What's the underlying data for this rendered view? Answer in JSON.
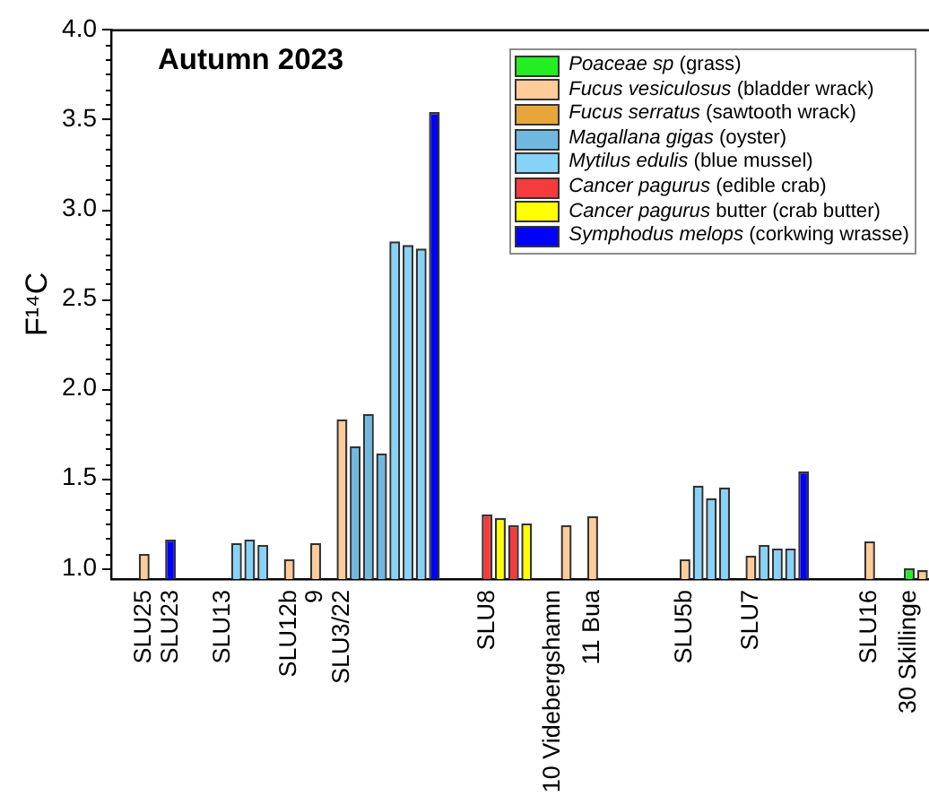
{
  "chart_data": {
    "type": "bar",
    "title": "Autumn 2023",
    "ylabel": "F¹⁴C",
    "categories": [
      null,
      null,
      "SLU25",
      null,
      "SLU23",
      null,
      null,
      null,
      "SLU13",
      null,
      null,
      null,
      null,
      "SLU12b",
      null,
      "9",
      null,
      "SLU3/22",
      null,
      null,
      null,
      null,
      null,
      null,
      null,
      null,
      null,
      null,
      "SLU8",
      null,
      null,
      null,
      null,
      "10 Videbergshamn",
      null,
      null,
      "11 Bua",
      null,
      null,
      null,
      null,
      null,
      null,
      "SLU5b",
      null,
      null,
      null,
      null,
      "SLU7",
      null,
      null,
      null,
      null,
      null,
      null,
      null,
      null,
      "SLU16",
      null,
      null,
      "30 Skillinge",
      null
    ],
    "series": [
      {
        "name": "Poaceae sp (grass)",
        "color": "#22ee22",
        "values": [
          null,
          null,
          null,
          null,
          null,
          null,
          null,
          null,
          null,
          null,
          null,
          null,
          null,
          null,
          null,
          null,
          null,
          null,
          null,
          null,
          null,
          null,
          null,
          null,
          null,
          null,
          null,
          null,
          null,
          null,
          null,
          null,
          null,
          null,
          null,
          null,
          null,
          null,
          null,
          null,
          null,
          null,
          null,
          null,
          null,
          null,
          null,
          null,
          null,
          null,
          null,
          null,
          null,
          null,
          null,
          null,
          null,
          null,
          null,
          null,
          1.0,
          null
        ]
      },
      {
        "name": "Fucus vesiculosus (bladder wrack)",
        "color": "#ffcc99",
        "values": [
          null,
          null,
          1.08,
          null,
          null,
          null,
          null,
          null,
          null,
          null,
          null,
          null,
          null,
          1.05,
          null,
          1.14,
          null,
          1.83,
          null,
          null,
          null,
          null,
          null,
          null,
          null,
          null,
          null,
          null,
          null,
          null,
          null,
          null,
          null,
          null,
          1.24,
          null,
          1.29,
          null,
          null,
          null,
          null,
          null,
          null,
          1.05,
          null,
          null,
          null,
          null,
          1.07,
          null,
          null,
          null,
          null,
          null,
          null,
          null,
          null,
          1.15,
          null,
          null,
          null,
          0.99
        ]
      },
      {
        "name": "Fucus serratus (sawtooth wrack)",
        "color": "#e8a53c",
        "values": [
          null,
          null,
          null,
          null,
          null,
          null,
          null,
          null,
          null,
          null,
          null,
          null,
          null,
          null,
          null,
          null,
          null,
          null,
          null,
          null,
          null,
          null,
          null,
          null,
          null,
          null,
          null,
          null,
          null,
          null,
          null,
          null,
          null,
          null,
          null,
          null,
          null,
          null,
          null,
          null,
          null,
          null,
          null,
          null,
          null,
          null,
          null,
          null,
          null,
          null,
          null,
          null,
          null,
          null,
          null,
          null,
          null,
          null,
          null,
          null,
          null,
          null
        ]
      },
      {
        "name": "Magallana gigas (oyster)",
        "color": "#6fb9e0",
        "values": [
          null,
          null,
          null,
          null,
          null,
          null,
          null,
          null,
          null,
          null,
          null,
          null,
          null,
          null,
          null,
          null,
          null,
          null,
          1.68,
          1.86,
          1.64,
          null,
          null,
          null,
          null,
          null,
          null,
          null,
          null,
          null,
          null,
          null,
          null,
          null,
          null,
          null,
          null,
          null,
          null,
          null,
          null,
          null,
          null,
          null,
          null,
          null,
          null,
          null,
          null,
          null,
          null,
          null,
          null,
          null,
          null,
          null,
          null,
          null,
          null,
          null,
          null,
          null
        ]
      },
      {
        "name": "Mytilus edulis (blue mussel)",
        "color": "#87d3f8",
        "values": [
          null,
          null,
          null,
          null,
          null,
          null,
          null,
          null,
          null,
          1.14,
          1.16,
          1.13,
          null,
          null,
          null,
          null,
          null,
          null,
          null,
          null,
          null,
          2.82,
          2.8,
          2.78,
          null,
          null,
          null,
          null,
          null,
          null,
          null,
          null,
          null,
          null,
          null,
          null,
          null,
          null,
          null,
          null,
          null,
          null,
          null,
          null,
          1.46,
          1.39,
          1.45,
          null,
          null,
          1.13,
          1.11,
          1.11,
          null,
          null,
          null,
          null,
          null,
          null,
          null,
          null,
          null,
          null
        ]
      },
      {
        "name": "Cancer pagurus (edible crab)",
        "color": "#f53b3b",
        "values": [
          null,
          null,
          null,
          null,
          null,
          null,
          null,
          null,
          null,
          null,
          null,
          null,
          null,
          null,
          null,
          null,
          null,
          null,
          null,
          null,
          null,
          null,
          null,
          null,
          null,
          null,
          null,
          null,
          1.3,
          null,
          1.24,
          null,
          null,
          null,
          null,
          null,
          null,
          null,
          null,
          null,
          null,
          null,
          null,
          null,
          null,
          null,
          null,
          null,
          null,
          null,
          null,
          null,
          null,
          null,
          null,
          null,
          null,
          null,
          null,
          null,
          null,
          null
        ]
      },
      {
        "name": "Cancer pagurus butter (crab butter)",
        "color": "#ffff00",
        "values": [
          null,
          null,
          null,
          null,
          null,
          null,
          null,
          null,
          null,
          null,
          null,
          null,
          null,
          null,
          null,
          null,
          null,
          null,
          null,
          null,
          null,
          null,
          null,
          null,
          null,
          null,
          null,
          null,
          null,
          1.28,
          null,
          1.25,
          null,
          null,
          null,
          null,
          null,
          null,
          null,
          null,
          null,
          null,
          null,
          null,
          null,
          null,
          null,
          null,
          null,
          null,
          null,
          null,
          null,
          null,
          null,
          null,
          null,
          null,
          null,
          null,
          null,
          null
        ]
      },
      {
        "name": "Symphodus melops (corkwing wrasse)",
        "color": "#0000ff",
        "values": [
          null,
          null,
          null,
          null,
          1.16,
          null,
          null,
          null,
          null,
          null,
          null,
          null,
          null,
          null,
          null,
          null,
          null,
          null,
          null,
          null,
          null,
          null,
          null,
          null,
          3.54,
          null,
          null,
          null,
          null,
          null,
          null,
          null,
          null,
          null,
          null,
          null,
          null,
          null,
          null,
          null,
          null,
          null,
          null,
          null,
          null,
          null,
          null,
          null,
          null,
          null,
          null,
          null,
          1.54,
          null,
          null,
          null,
          null,
          null,
          null,
          null,
          null,
          null
        ]
      }
    ],
    "ylim": [
      0.94,
      4.0
    ],
    "yticks": [
      {
        "value": 1,
        "label": "1.0"
      },
      {
        "value": 1.083,
        "label": null
      },
      {
        "value": 1.167,
        "label": null
      },
      {
        "value": 1.25,
        "label": null
      },
      {
        "value": 1.333,
        "label": null
      },
      {
        "value": 1.417,
        "label": null
      },
      1.5,
      {
        "value": 1.583,
        "label": null
      },
      {
        "value": 1.667,
        "label": null
      },
      {
        "value": 1.75,
        "label": null
      },
      {
        "value": 1.833,
        "label": null
      },
      {
        "value": 1.917,
        "label": null
      },
      {
        "value": 2,
        "label": "2.0"
      },
      {
        "value": 2.083,
        "label": null
      },
      {
        "value": 2.167,
        "label": null
      },
      {
        "value": 2.25,
        "label": null
      },
      {
        "value": 2.333,
        "label": null
      },
      {
        "value": 2.417,
        "label": null
      },
      2.5,
      {
        "value": 2.583,
        "label": null
      },
      {
        "value": 2.667,
        "label": null
      },
      {
        "value": 2.75,
        "label": null
      },
      {
        "value": 2.833,
        "label": null
      },
      {
        "value": 2.917,
        "label": null
      },
      {
        "value": 3,
        "label": "3.0"
      },
      {
        "value": 3.083,
        "label": null
      },
      {
        "value": 3.167,
        "label": null
      },
      {
        "value": 3.25,
        "label": null
      },
      {
        "value": 3.333,
        "label": null
      },
      {
        "value": 3.417,
        "label": null
      },
      3.5,
      {
        "value": 3.583,
        "label": null
      },
      {
        "value": 3.667,
        "label": null
      },
      {
        "value": 3.75,
        "label": null
      },
      {
        "value": 3.833,
        "label": null
      },
      {
        "value": 3.917,
        "label": null
      },
      {
        "value": 4,
        "label": "4.0"
      }
    ],
    "legend": "top right"
  }
}
